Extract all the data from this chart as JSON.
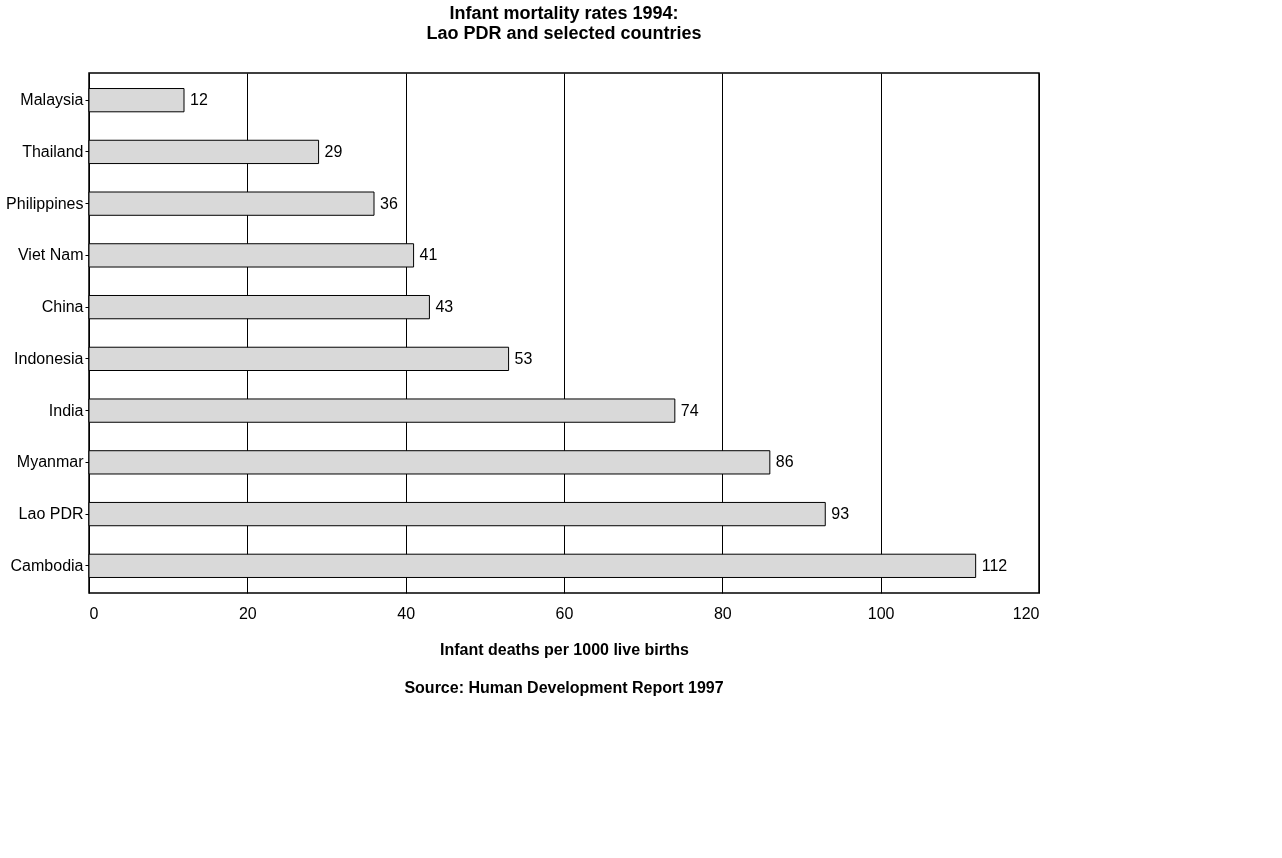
{
  "chart_data": {
    "type": "bar",
    "orientation": "horizontal",
    "title": "Infant mortality rates 1994:\nLao PDR and selected countries",
    "categories": [
      "Malaysia",
      "Thailand",
      "Philippines",
      "Viet Nam",
      "China",
      "Indonesia",
      "India",
      "Myanmar",
      "Lao PDR",
      "Cambodia"
    ],
    "values": [
      12,
      29,
      36,
      41,
      43,
      53,
      74,
      86,
      93,
      112
    ],
    "color": "#d9d9d9",
    "xlim": [
      0,
      120
    ],
    "xticks": [
      0,
      20,
      40,
      60,
      80,
      100,
      120
    ],
    "xlabel": "Infant deaths per 1000 live births",
    "annotations": [
      "Source: Human Development Report 1997"
    ],
    "data_labels": true,
    "grid": "x"
  }
}
